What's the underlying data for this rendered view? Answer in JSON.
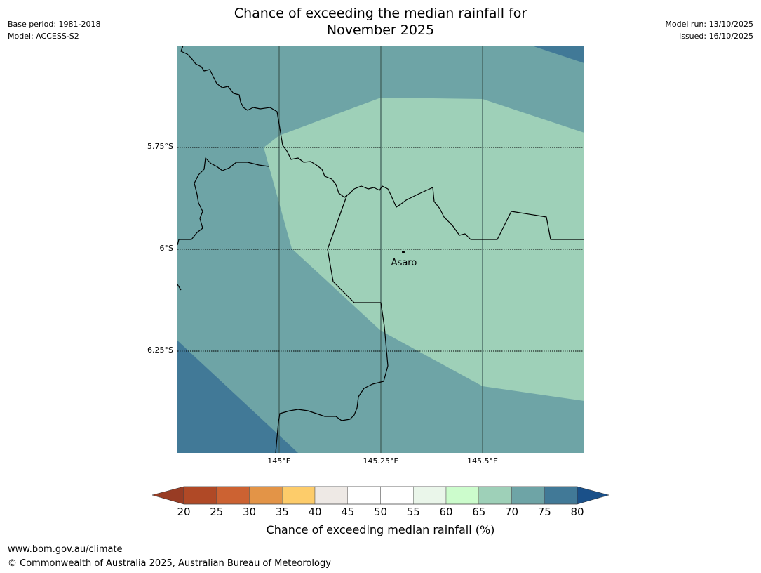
{
  "header": {
    "title_line1": "Chance of exceeding the median rainfall for",
    "title_line2": "November 2025",
    "base_period": "Base period: 1981-2018",
    "model": "Model: ACCESS-S2",
    "model_run": "Model run: 13/10/2025",
    "issued": "Issued: 16/10/2025"
  },
  "map": {
    "latitude_labels": [
      "5.75°S",
      "6°S",
      "6.25°S"
    ],
    "longitude_labels": [
      "145°E",
      "145.25°E",
      "145.5°E"
    ],
    "place": {
      "name": "Asaro"
    },
    "fill_colors": {
      "band_65_70": "#9ed0b8",
      "band_70_75": "#6ea4a6",
      "band_75_80": "#417997",
      "land_border": "#000000"
    }
  },
  "colorbar": {
    "ticks": [
      "20",
      "25",
      "30",
      "35",
      "40",
      "45",
      "50",
      "55",
      "60",
      "65",
      "70",
      "75",
      "80"
    ],
    "colors": [
      "#b04926",
      "#cc6232",
      "#e39447",
      "#fdcc6a",
      "#eee9e5",
      "#ffffff",
      "#ffffff",
      "#eaf6ea",
      "#ccfccc",
      "#9ed0b8",
      "#6ea4a6",
      "#417997"
    ],
    "under_color": "#983c24",
    "over_color": "#1a5089",
    "label": "Chance of exceeding median rainfall (%)"
  },
  "footer": {
    "url": "www.bom.gov.au/climate",
    "copyright": "© Commonwealth of Australia 2025, Australian Bureau of Meteorology"
  }
}
